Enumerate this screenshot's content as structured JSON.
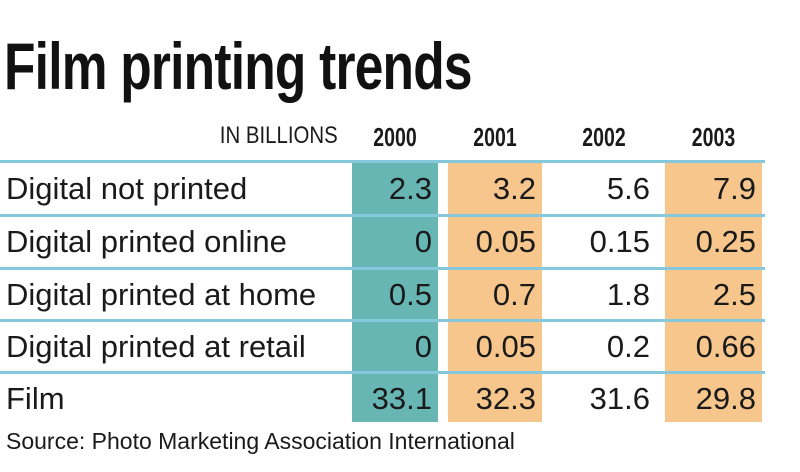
{
  "header": {
    "title": "Film printing trends",
    "unit": "IN BILLIONS"
  },
  "table": {
    "columns": [
      "2000",
      "2001",
      "2002",
      "2003"
    ],
    "rows": [
      {
        "label": "Digital not printed",
        "values": [
          2.3,
          3.2,
          5.6,
          7.9
        ]
      },
      {
        "label": "Digital printed online",
        "values": [
          0,
          0.05,
          0.15,
          0.25
        ]
      },
      {
        "label": "Digital printed at home",
        "values": [
          0.5,
          0.7,
          1.8,
          2.5
        ]
      },
      {
        "label": "Digital printed at retail",
        "values": [
          0,
          0.05,
          0.2,
          0.66
        ]
      },
      {
        "label": "Film",
        "values": [
          33.1,
          32.3,
          31.6,
          29.8
        ]
      }
    ]
  },
  "footer": {
    "source": "Source: Photo Marketing Association International"
  }
}
